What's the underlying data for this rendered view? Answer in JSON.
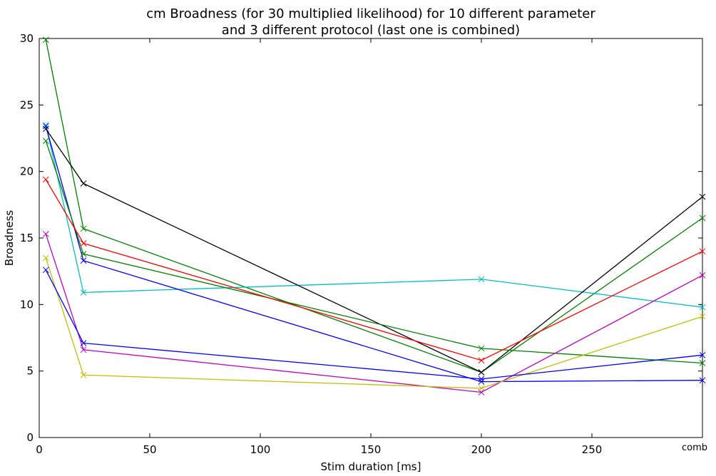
{
  "chart_data": {
    "type": "line",
    "title_lines": [
      "cm Broadness (for 30 multiplied likelihood) for 10 different parameter",
      "and 3 different protocol (last one is combined)"
    ],
    "xlabel": "Stim duration [ms]",
    "ylabel": "Broadness",
    "xlim": [
      0,
      300
    ],
    "ylim": [
      0,
      30
    ],
    "x_ticks": [
      0,
      50,
      100,
      150,
      200,
      250
    ],
    "x_tick_labels": [
      "0",
      "50",
      "100",
      "150",
      "200",
      "250"
    ],
    "x_extra_label": "comb",
    "y_ticks": [
      0,
      5,
      10,
      15,
      20,
      25,
      30
    ],
    "y_tick_labels": [
      "0",
      "5",
      "10",
      "15",
      "20",
      "25",
      "30"
    ],
    "grid": false,
    "legend": "none",
    "marker": "x",
    "x": [
      3,
      20,
      200,
      300
    ],
    "series": [
      {
        "color": "#008000",
        "values": [
          29.9,
          15.7,
          4.9,
          16.5
        ]
      },
      {
        "color": "#00bfbf",
        "values": [
          23.5,
          10.9,
          11.9,
          9.8
        ]
      },
      {
        "color": "#0000ff",
        "values": [
          23.4,
          13.3,
          4.2,
          4.3
        ]
      },
      {
        "color": "#000000",
        "values": [
          23.2,
          19.1,
          4.9,
          18.1
        ]
      },
      {
        "color": "#008000",
        "values": [
          22.3,
          13.8,
          6.7,
          5.6
        ]
      },
      {
        "color": "#ff0000",
        "values": [
          19.4,
          14.6,
          5.8,
          14.0
        ]
      },
      {
        "color": "#bf00bf",
        "values": [
          15.3,
          6.6,
          3.4,
          12.2
        ]
      },
      {
        "color": "#bfbf00",
        "values": [
          13.5,
          4.7,
          3.7,
          9.1
        ]
      },
      {
        "color": "#0000ff",
        "values": [
          12.6,
          7.1,
          4.4,
          6.2
        ]
      }
    ]
  }
}
